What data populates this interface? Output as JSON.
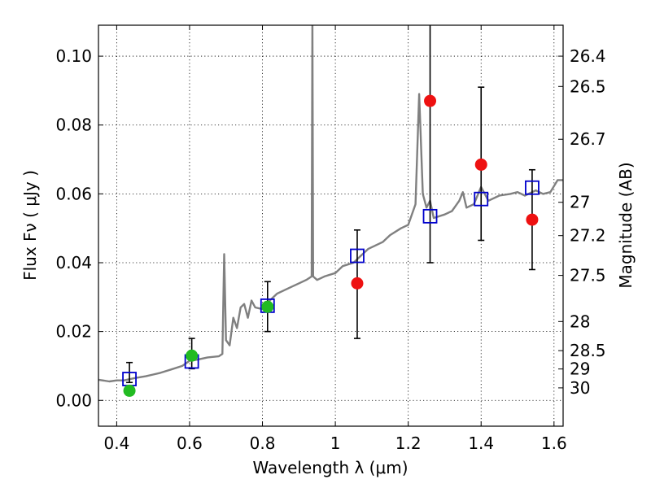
{
  "chart_data": {
    "type": "scatter",
    "xlabel": "Wavelength  λ (μm)",
    "ylabel": "Flux  Fν ( μJy )",
    "y2label": "Magnitude (AB)",
    "xlim": [
      0.35,
      1.625
    ],
    "ylim": [
      -0.0075,
      0.109
    ],
    "grid": true,
    "x_ticks": [
      {
        "value": 0.4,
        "label": "0.4"
      },
      {
        "value": 0.6,
        "label": "0.6"
      },
      {
        "value": 0.8,
        "label": "0.8"
      },
      {
        "value": 1.0,
        "label": "1"
      },
      {
        "value": 1.2,
        "label": "1.2"
      },
      {
        "value": 1.4,
        "label": "1.4"
      },
      {
        "value": 1.6,
        "label": "1.6"
      }
    ],
    "y_ticks": [
      {
        "value": 0.0,
        "label": "0.00"
      },
      {
        "value": 0.02,
        "label": "0.02"
      },
      {
        "value": 0.04,
        "label": "0.04"
      },
      {
        "value": 0.06,
        "label": "0.06"
      },
      {
        "value": 0.08,
        "label": "0.08"
      },
      {
        "value": 0.1,
        "label": "0.10"
      }
    ],
    "mag_ticks": [
      {
        "mag": 26.4,
        "label": "26.4"
      },
      {
        "mag": 26.5,
        "label": "26.5"
      },
      {
        "mag": 26.7,
        "label": "26.7"
      },
      {
        "mag": 27,
        "label": "27"
      },
      {
        "mag": 27.2,
        "label": "27.2"
      },
      {
        "mag": 27.5,
        "label": "27.5"
      },
      {
        "mag": 28,
        "label": "28"
      },
      {
        "mag": 28.5,
        "label": "28.5"
      },
      {
        "mag": 29,
        "label": "29"
      },
      {
        "mag": 30,
        "label": "30"
      }
    ],
    "series": [
      {
        "kind": "spectrum",
        "color": "#808080",
        "points": [
          [
            0.35,
            0.006
          ],
          [
            0.38,
            0.0055
          ],
          [
            0.4,
            0.0058
          ],
          [
            0.42,
            0.0058
          ],
          [
            0.45,
            0.0065
          ],
          [
            0.48,
            0.007
          ],
          [
            0.5,
            0.0075
          ],
          [
            0.52,
            0.008
          ],
          [
            0.55,
            0.009
          ],
          [
            0.58,
            0.01
          ],
          [
            0.6,
            0.0115
          ],
          [
            0.62,
            0.0118
          ],
          [
            0.65,
            0.0125
          ],
          [
            0.68,
            0.0128
          ],
          [
            0.69,
            0.0135
          ],
          [
            0.695,
            0.0425
          ],
          [
            0.7,
            0.0175
          ],
          [
            0.71,
            0.016
          ],
          [
            0.72,
            0.024
          ],
          [
            0.73,
            0.021
          ],
          [
            0.74,
            0.027
          ],
          [
            0.75,
            0.028
          ],
          [
            0.76,
            0.024
          ],
          [
            0.77,
            0.029
          ],
          [
            0.78,
            0.027
          ],
          [
            0.8,
            0.0265
          ],
          [
            0.82,
            0.029
          ],
          [
            0.84,
            0.031
          ],
          [
            0.86,
            0.032
          ],
          [
            0.88,
            0.033
          ],
          [
            0.9,
            0.034
          ],
          [
            0.92,
            0.035
          ],
          [
            0.935,
            0.036
          ],
          [
            0.937,
            0.112
          ],
          [
            0.939,
            0.036
          ],
          [
            0.95,
            0.035
          ],
          [
            0.97,
            0.036
          ],
          [
            1.0,
            0.037
          ],
          [
            1.02,
            0.039
          ],
          [
            1.05,
            0.04
          ],
          [
            1.07,
            0.042
          ],
          [
            1.09,
            0.044
          ],
          [
            1.11,
            0.045
          ],
          [
            1.13,
            0.046
          ],
          [
            1.15,
            0.048
          ],
          [
            1.18,
            0.05
          ],
          [
            1.2,
            0.051
          ],
          [
            1.22,
            0.057
          ],
          [
            1.23,
            0.089
          ],
          [
            1.24,
            0.06
          ],
          [
            1.25,
            0.056
          ],
          [
            1.26,
            0.058
          ],
          [
            1.27,
            0.053
          ],
          [
            1.3,
            0.054
          ],
          [
            1.32,
            0.055
          ],
          [
            1.34,
            0.058
          ],
          [
            1.35,
            0.0605
          ],
          [
            1.36,
            0.056
          ],
          [
            1.38,
            0.057
          ],
          [
            1.4,
            0.062
          ],
          [
            1.42,
            0.058
          ],
          [
            1.45,
            0.0595
          ],
          [
            1.48,
            0.06
          ],
          [
            1.5,
            0.0605
          ],
          [
            1.52,
            0.0595
          ],
          [
            1.55,
            0.061
          ],
          [
            1.57,
            0.06
          ],
          [
            1.59,
            0.0605
          ],
          [
            1.61,
            0.064
          ],
          [
            1.625,
            0.064
          ]
        ]
      },
      {
        "kind": "model-flux",
        "marker": "open-square",
        "color": "#0000cc",
        "x": [
          0.435,
          0.606,
          0.814,
          1.06,
          1.26,
          1.4,
          1.54
        ],
        "y": [
          0.0062,
          0.0113,
          0.0275,
          0.042,
          0.0535,
          0.0585,
          0.0618
        ]
      },
      {
        "kind": "observed-flux",
        "marker": "filled-circle",
        "color": "#22bb22",
        "x": [
          0.435,
          0.606,
          0.814
        ],
        "y": [
          0.0028,
          0.013,
          0.0272
        ],
        "err_low": [
          0.0052,
          0.0092,
          0.02
        ],
        "err_high": [
          0.011,
          0.018,
          0.0345
        ]
      },
      {
        "kind": "observed-flux",
        "marker": "filled-circle",
        "color": "#ee1111",
        "x": [
          1.06,
          1.26,
          1.4,
          1.54
        ],
        "y": [
          0.034,
          0.087,
          0.0685,
          0.0525
        ],
        "err_low": [
          0.018,
          0.04,
          0.0465,
          0.038
        ],
        "err_high": [
          0.0495,
          0.112,
          0.091,
          0.067
        ]
      }
    ]
  }
}
